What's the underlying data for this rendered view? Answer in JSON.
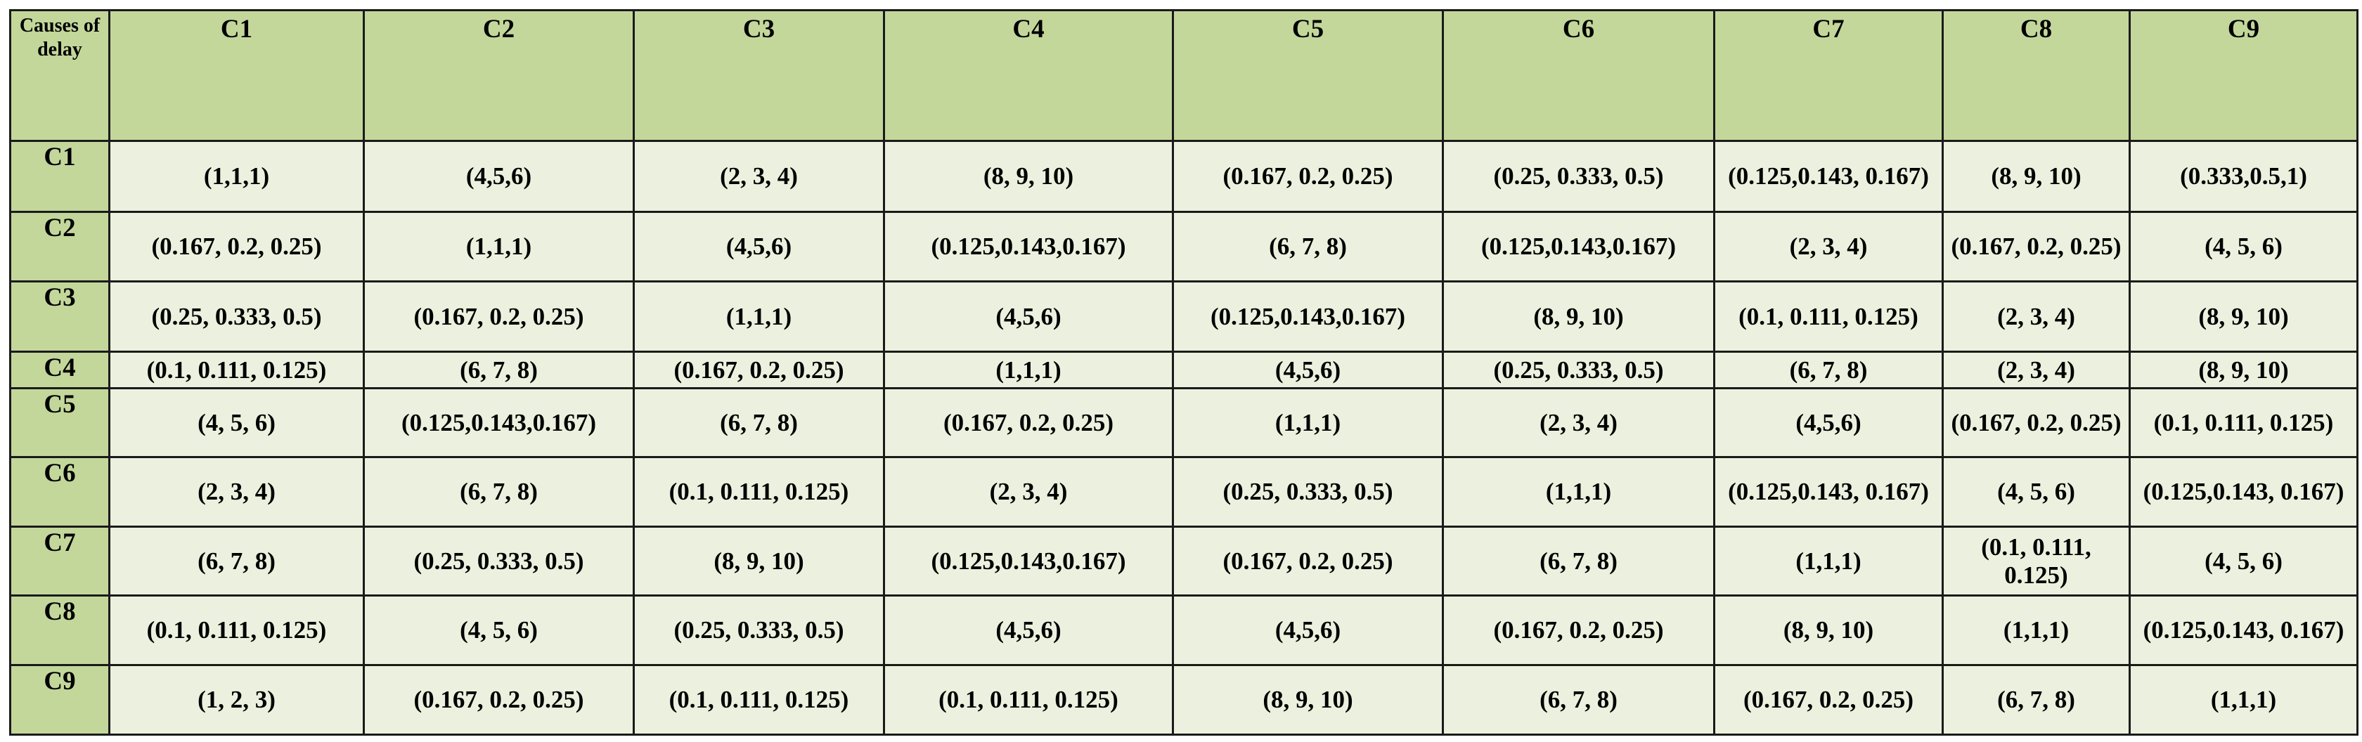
{
  "table": {
    "header": [
      "Causes of delay",
      "C1",
      "C2",
      "C3",
      "C4",
      "C5",
      "C6",
      "C7",
      "C8",
      "C9"
    ],
    "rows": [
      [
        "C1",
        "(1,1,1)",
        "(4,5,6)",
        "(2, 3, 4)",
        "(8, 9, 10)",
        "(0.167, 0.2, 0.25)",
        "(0.25, 0.333, 0.5)",
        "(0.125,0.143, 0.167)",
        "(8, 9, 10)",
        "(0.333,0.5,1)"
      ],
      [
        "C2",
        "(0.167, 0.2, 0.25)",
        "(1,1,1)",
        "(4,5,6)",
        "(0.125,0.143,0.167)",
        "(6, 7, 8)",
        "(0.125,0.143,0.167)",
        "(2, 3, 4)",
        "(0.167, 0.2, 0.25)",
        "(4, 5, 6)"
      ],
      [
        "C3",
        "(0.25, 0.333, 0.5)",
        "(0.167, 0.2, 0.25)",
        "(1,1,1)",
        "(4,5,6)",
        "(0.125,0.143,0.167)",
        "(8, 9, 10)",
        "(0.1, 0.111, 0.125)",
        "(2, 3, 4)",
        "(8, 9, 10)"
      ],
      [
        "C4",
        "(0.1, 0.111, 0.125)",
        "(6, 7, 8)",
        "(0.167, 0.2, 0.25)",
        "(1,1,1)",
        "(4,5,6)",
        "(0.25, 0.333, 0.5)",
        "(6, 7, 8)",
        "(2, 3, 4)",
        "(8, 9, 10)"
      ],
      [
        "C5",
        "(4, 5, 6)",
        "(0.125,0.143,0.167)",
        "(6, 7, 8)",
        "(0.167, 0.2, 0.25)",
        "(1,1,1)",
        "(2, 3, 4)",
        "(4,5,6)",
        "(0.167, 0.2, 0.25)",
        "(0.1, 0.111, 0.125)"
      ],
      [
        "C6",
        "(2, 3, 4)",
        "(6, 7, 8)",
        "(0.1, 0.111, 0.125)",
        "(2, 3, 4)",
        "(0.25, 0.333, 0.5)",
        "(1,1,1)",
        "(0.125,0.143, 0.167)",
        "(4, 5, 6)",
        "(0.125,0.143, 0.167)"
      ],
      [
        "C7",
        "(6, 7, 8)",
        "(0.25, 0.333, 0.5)",
        "(8, 9, 10)",
        "(0.125,0.143,0.167)",
        "(0.167, 0.2, 0.25)",
        "(6, 7, 8)",
        "(1,1,1)",
        "(0.1, 0.111, 0.125)",
        "(4, 5, 6)"
      ],
      [
        "C8",
        "(0.1, 0.111, 0.125)",
        "(4, 5, 6)",
        "(0.25, 0.333, 0.5)",
        "(4,5,6)",
        "(4,5,6)",
        "(0.167, 0.2, 0.25)",
        "(8, 9, 10)",
        "(1,1,1)",
        "(0.125,0.143, 0.167)"
      ],
      [
        "C9",
        "(1, 2, 3)",
        "(0.167, 0.2, 0.25)",
        "(0.1, 0.111, 0.125)",
        "(0.1, 0.111, 0.125)",
        "(8, 9, 10)",
        "(6, 7, 8)",
        "(0.167, 0.2, 0.25)",
        "(6, 7, 8)",
        "(1,1,1)"
      ]
    ]
  }
}
